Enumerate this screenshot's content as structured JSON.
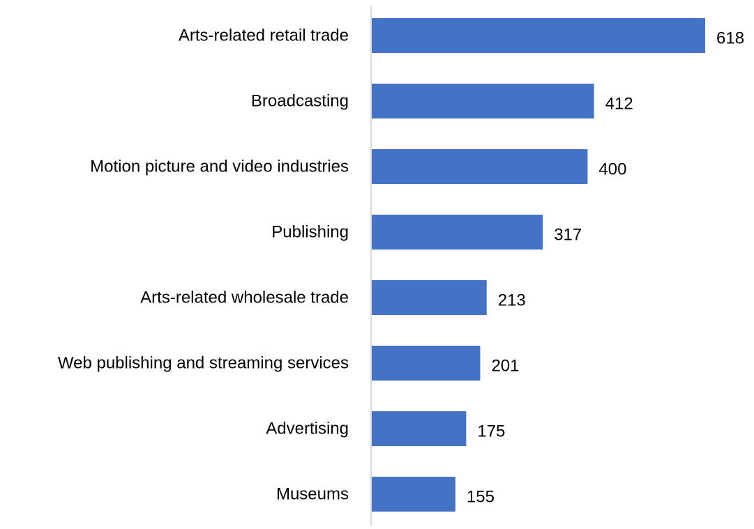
{
  "chart_data": {
    "type": "bar",
    "orientation": "horizontal",
    "title": "",
    "xlabel": "",
    "ylabel": "",
    "categories": [
      "Arts-related retail trade",
      "Broadcasting",
      "Motion picture and video industries",
      "Publishing",
      "Arts-related wholesale trade",
      "Web publishing and streaming services",
      "Advertising",
      "Museums"
    ],
    "values": [
      618,
      412,
      400,
      317,
      213,
      201,
      175,
      155
    ],
    "xlim": [
      0,
      700
    ],
    "grid": false,
    "legend": "none",
    "data_labels": true,
    "colors": {
      "bar": "#4472C4",
      "axis": "#D9D9D9",
      "text": "#000000"
    }
  }
}
